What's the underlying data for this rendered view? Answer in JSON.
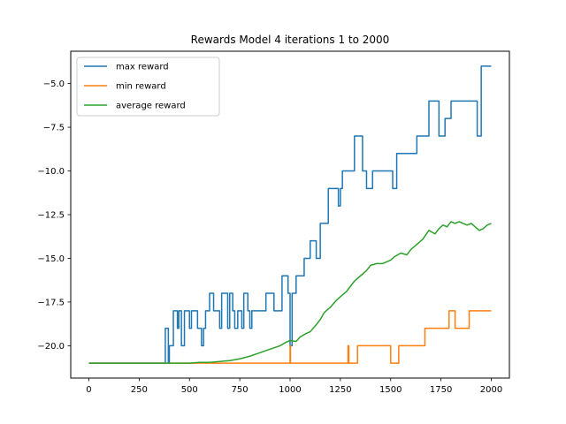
{
  "chart_data": {
    "type": "line",
    "title": "Rewards Model 4 iterations 1 to 2000",
    "xlabel": "",
    "ylabel": "",
    "xlim": [
      -90,
      2090
    ],
    "ylim": [
      -21.85,
      -3.15
    ],
    "xticks": [
      0,
      250,
      500,
      750,
      1000,
      1250,
      1500,
      1750,
      2000
    ],
    "xtick_labels": [
      "0",
      "250",
      "500",
      "750",
      "1000",
      "1250",
      "1500",
      "1750",
      "2000"
    ],
    "yticks": [
      -20.0,
      -17.5,
      -15.0,
      -12.5,
      -10.0,
      -7.5,
      -5.0
    ],
    "ytick_labels": [
      "−20.0",
      "−17.5",
      "−15.0",
      "−12.5",
      "−10.0",
      "−7.5",
      "−5.0"
    ],
    "grid": false,
    "legend_position": "top-left",
    "series": [
      {
        "name": "max reward",
        "color": "#1f77b4",
        "step": true,
        "points": [
          [
            0,
            -21
          ],
          [
            380,
            -21
          ],
          [
            380,
            -19
          ],
          [
            395,
            -19
          ],
          [
            395,
            -21
          ],
          [
            400,
            -21
          ],
          [
            400,
            -20
          ],
          [
            420,
            -20
          ],
          [
            420,
            -18
          ],
          [
            440,
            -18
          ],
          [
            440,
            -19
          ],
          [
            447,
            -19
          ],
          [
            447,
            -18
          ],
          [
            460,
            -18
          ],
          [
            460,
            -20
          ],
          [
            475,
            -20
          ],
          [
            475,
            -18
          ],
          [
            500,
            -18
          ],
          [
            500,
            -19
          ],
          [
            510,
            -19
          ],
          [
            510,
            -18
          ],
          [
            540,
            -18
          ],
          [
            540,
            -19
          ],
          [
            560,
            -19
          ],
          [
            560,
            -20
          ],
          [
            570,
            -20
          ],
          [
            570,
            -19
          ],
          [
            580,
            -19
          ],
          [
            580,
            -18
          ],
          [
            600,
            -18
          ],
          [
            600,
            -17
          ],
          [
            620,
            -17
          ],
          [
            620,
            -18
          ],
          [
            650,
            -18
          ],
          [
            650,
            -19
          ],
          [
            660,
            -19
          ],
          [
            660,
            -17
          ],
          [
            690,
            -17
          ],
          [
            690,
            -19
          ],
          [
            700,
            -19
          ],
          [
            700,
            -17
          ],
          [
            715,
            -17
          ],
          [
            715,
            -18
          ],
          [
            725,
            -18
          ],
          [
            725,
            -19
          ],
          [
            740,
            -19
          ],
          [
            740,
            -18
          ],
          [
            760,
            -18
          ],
          [
            760,
            -19
          ],
          [
            770,
            -19
          ],
          [
            770,
            -17
          ],
          [
            790,
            -17
          ],
          [
            790,
            -18
          ],
          [
            800,
            -18
          ],
          [
            800,
            -19
          ],
          [
            810,
            -19
          ],
          [
            810,
            -18
          ],
          [
            880,
            -18
          ],
          [
            880,
            -17
          ],
          [
            920,
            -17
          ],
          [
            920,
            -18
          ],
          [
            960,
            -18
          ],
          [
            960,
            -16
          ],
          [
            990,
            -16
          ],
          [
            990,
            -17
          ],
          [
            1000,
            -17
          ],
          [
            1000,
            -20
          ],
          [
            1010,
            -20
          ],
          [
            1010,
            -17
          ],
          [
            1030,
            -17
          ],
          [
            1030,
            -16
          ],
          [
            1070,
            -16
          ],
          [
            1070,
            -15
          ],
          [
            1100,
            -15
          ],
          [
            1100,
            -14
          ],
          [
            1130,
            -14
          ],
          [
            1130,
            -15
          ],
          [
            1150,
            -15
          ],
          [
            1150,
            -13
          ],
          [
            1190,
            -13
          ],
          [
            1190,
            -11
          ],
          [
            1240,
            -11
          ],
          [
            1240,
            -12
          ],
          [
            1250,
            -12
          ],
          [
            1250,
            -11
          ],
          [
            1260,
            -11
          ],
          [
            1260,
            -10
          ],
          [
            1320,
            -10
          ],
          [
            1320,
            -8
          ],
          [
            1360,
            -8
          ],
          [
            1360,
            -10
          ],
          [
            1380,
            -10
          ],
          [
            1380,
            -11
          ],
          [
            1410,
            -11
          ],
          [
            1410,
            -10
          ],
          [
            1510,
            -10
          ],
          [
            1510,
            -11
          ],
          [
            1530,
            -11
          ],
          [
            1530,
            -9
          ],
          [
            1630,
            -9
          ],
          [
            1630,
            -8
          ],
          [
            1690,
            -8
          ],
          [
            1690,
            -6
          ],
          [
            1740,
            -6
          ],
          [
            1740,
            -8
          ],
          [
            1770,
            -8
          ],
          [
            1770,
            -7
          ],
          [
            1800,
            -7
          ],
          [
            1800,
            -6
          ],
          [
            1930,
            -6
          ],
          [
            1930,
            -8
          ],
          [
            1950,
            -8
          ],
          [
            1950,
            -4
          ],
          [
            2000,
            -4
          ]
        ]
      },
      {
        "name": "min reward",
        "color": "#ff7f0e",
        "step": true,
        "points": [
          [
            0,
            -21
          ],
          [
            1000,
            -21
          ],
          [
            1000,
            -20
          ],
          [
            1002,
            -20
          ],
          [
            1002,
            -21
          ],
          [
            1288,
            -21
          ],
          [
            1288,
            -20
          ],
          [
            1292,
            -20
          ],
          [
            1292,
            -21
          ],
          [
            1335,
            -21
          ],
          [
            1335,
            -20
          ],
          [
            1500,
            -20
          ],
          [
            1500,
            -21
          ],
          [
            1540,
            -21
          ],
          [
            1540,
            -20
          ],
          [
            1670,
            -20
          ],
          [
            1670,
            -19
          ],
          [
            1790,
            -19
          ],
          [
            1790,
            -18
          ],
          [
            1820,
            -18
          ],
          [
            1820,
            -19
          ],
          [
            1890,
            -19
          ],
          [
            1890,
            -18
          ],
          [
            2000,
            -18
          ]
        ]
      },
      {
        "name": "average reward",
        "color": "#2ca02c",
        "step": false,
        "points": [
          [
            0,
            -21
          ],
          [
            400,
            -21
          ],
          [
            500,
            -21
          ],
          [
            550,
            -20.95
          ],
          [
            600,
            -20.95
          ],
          [
            650,
            -20.9
          ],
          [
            700,
            -20.85
          ],
          [
            750,
            -20.75
          ],
          [
            800,
            -20.6
          ],
          [
            850,
            -20.4
          ],
          [
            900,
            -20.2
          ],
          [
            950,
            -20.0
          ],
          [
            980,
            -19.8
          ],
          [
            1000,
            -19.7
          ],
          [
            1030,
            -19.75
          ],
          [
            1050,
            -19.5
          ],
          [
            1080,
            -19.3
          ],
          [
            1100,
            -19.2
          ],
          [
            1130,
            -18.8
          ],
          [
            1150,
            -18.5
          ],
          [
            1170,
            -18.1
          ],
          [
            1200,
            -17.8
          ],
          [
            1230,
            -17.4
          ],
          [
            1250,
            -17.2
          ],
          [
            1280,
            -16.9
          ],
          [
            1300,
            -16.6
          ],
          [
            1320,
            -16.3
          ],
          [
            1350,
            -16.0
          ],
          [
            1380,
            -15.7
          ],
          [
            1400,
            -15.4
          ],
          [
            1430,
            -15.3
          ],
          [
            1460,
            -15.3
          ],
          [
            1480,
            -15.2
          ],
          [
            1500,
            -15.1
          ],
          [
            1520,
            -14.9
          ],
          [
            1550,
            -14.7
          ],
          [
            1580,
            -14.8
          ],
          [
            1600,
            -14.5
          ],
          [
            1630,
            -14.2
          ],
          [
            1660,
            -13.9
          ],
          [
            1690,
            -13.4
          ],
          [
            1720,
            -13.6
          ],
          [
            1740,
            -13.3
          ],
          [
            1760,
            -13.1
          ],
          [
            1780,
            -13.2
          ],
          [
            1800,
            -12.9
          ],
          [
            1820,
            -13.0
          ],
          [
            1840,
            -12.9
          ],
          [
            1860,
            -13.0
          ],
          [
            1880,
            -13.1
          ],
          [
            1900,
            -13.0
          ],
          [
            1920,
            -13.2
          ],
          [
            1940,
            -13.4
          ],
          [
            1960,
            -13.3
          ],
          [
            1980,
            -13.1
          ],
          [
            2000,
            -13.0
          ]
        ]
      }
    ]
  }
}
